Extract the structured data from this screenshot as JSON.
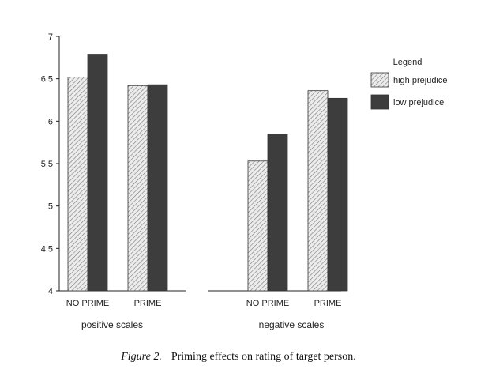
{
  "chart_data": {
    "type": "bar",
    "ylim": [
      4,
      7
    ],
    "yticks": [
      "4",
      "4.5",
      "5",
      "5.5",
      "6",
      "6.5",
      "7"
    ],
    "groups": [
      {
        "label": "positive scales",
        "categories": [
          "NO PRIME",
          "PRIME"
        ]
      },
      {
        "label": "negative scales",
        "categories": [
          "NO PRIME",
          "PRIME"
        ]
      }
    ],
    "categories": [
      "NO PRIME",
      "PRIME",
      "NO PRIME",
      "PRIME"
    ],
    "series": [
      {
        "name": "high prejudice",
        "values": [
          6.52,
          6.42,
          5.53,
          6.36
        ]
      },
      {
        "name": "low prejudice",
        "values": [
          6.79,
          6.43,
          5.85,
          6.27
        ]
      }
    ],
    "legend": {
      "title": "Legend",
      "position": "right"
    },
    "colors": {
      "high_prejudice": "#e8e8e8",
      "high_prejudice_hatch": "#777777",
      "low_prejudice": "#3d3d3d",
      "axis": "#222222"
    },
    "grid": false
  },
  "caption": {
    "label": "Figure 2.",
    "text": "Priming effects on rating of target person."
  }
}
